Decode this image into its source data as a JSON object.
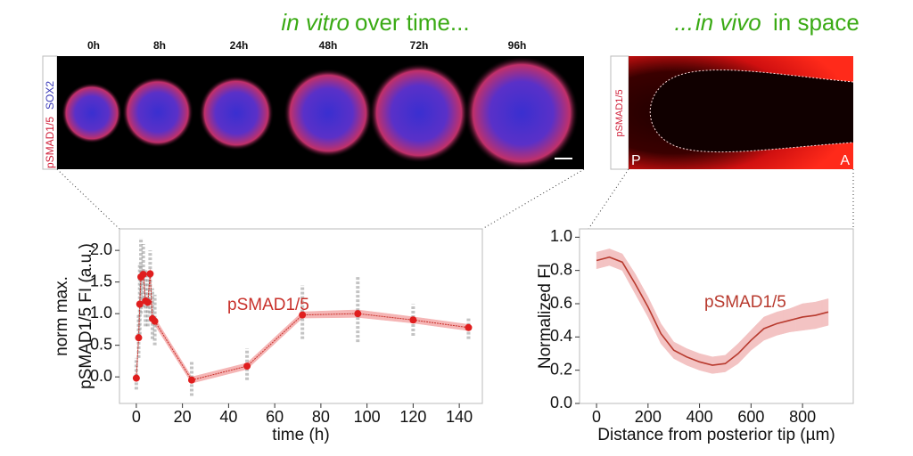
{
  "headings": {
    "left": [
      "in vitro",
      "over time..."
    ],
    "right": [
      "...",
      "in vivo",
      "in space"
    ]
  },
  "images": {
    "left": {
      "time_labels": [
        "0h",
        "8h",
        "24h",
        "48h",
        "72h",
        "96h"
      ],
      "stain_labels": [
        "pSMAD1/5",
        "SOX2"
      ]
    },
    "right": {
      "stain_label": "pSMAD1/5",
      "posterior": "P",
      "anterior": "A"
    }
  },
  "chart_data": [
    {
      "type": "line",
      "markers": true,
      "color": "#c8302a",
      "marker_color": "#e01e1e",
      "band_color": "#f5b5b5",
      "range_color": "#888888",
      "xlabel": "time (h)",
      "ylabel": [
        "norm max.",
        "pSMAD1/5 FI (a.u.)"
      ],
      "annotation": "pSMAD1/5",
      "x": [
        0,
        1,
        1.5,
        2,
        3,
        4,
        5,
        6,
        7,
        8,
        24,
        48,
        72,
        96,
        120,
        144
      ],
      "values": [
        -0.02,
        0.62,
        1.15,
        1.58,
        1.62,
        1.2,
        1.18,
        1.63,
        0.92,
        0.88,
        -0.05,
        0.17,
        0.98,
        1.0,
        0.9,
        0.78
      ],
      "errors": [
        0.05,
        0.06,
        0.07,
        0.08,
        0.08,
        0.07,
        0.07,
        0.08,
        0.06,
        0.06,
        0.05,
        0.05,
        0.05,
        0.06,
        0.05,
        0.05
      ],
      "range": [
        [
          -0.2,
          0.3
        ],
        [
          0.3,
          1.0
        ],
        [
          0.6,
          1.8
        ],
        [
          1.0,
          2.2
        ],
        [
          1.1,
          2.1
        ],
        [
          0.8,
          1.7
        ],
        [
          0.8,
          1.6
        ],
        [
          1.0,
          2.0
        ],
        [
          0.6,
          1.4
        ],
        [
          0.5,
          1.3
        ],
        [
          -0.3,
          0.25
        ],
        [
          -0.05,
          0.45
        ],
        [
          0.6,
          1.45
        ],
        [
          0.55,
          1.6
        ],
        [
          0.65,
          1.15
        ],
        [
          0.6,
          0.95
        ]
      ],
      "xlim": [
        -7.3,
        150
      ],
      "ylim": [
        -0.42,
        2.34
      ],
      "xticks": [
        0,
        20,
        40,
        60,
        80,
        100,
        120,
        140
      ],
      "yticks": [
        {
          "value": 0,
          "label": "0.0"
        },
        0.5,
        {
          "value": 1,
          "label": "1.0"
        },
        1.5,
        {
          "value": 2,
          "label": "2.0"
        }
      ]
    },
    {
      "type": "line",
      "markers": false,
      "color": "#b83a2e",
      "band_color": "#f3c3c3",
      "xlabel": "Distance from posterior tip (µm)",
      "ylabel": [
        "Normalized FI"
      ],
      "annotation": "pSMAD1/5",
      "x": [
        0,
        50,
        100,
        150,
        200,
        250,
        300,
        350,
        400,
        450,
        500,
        550,
        600,
        650,
        700,
        750,
        800,
        850,
        900
      ],
      "values": [
        0.86,
        0.88,
        0.85,
        0.72,
        0.58,
        0.42,
        0.32,
        0.28,
        0.25,
        0.23,
        0.24,
        0.3,
        0.38,
        0.45,
        0.48,
        0.5,
        0.52,
        0.53,
        0.55
      ],
      "errors": [
        0.05,
        0.05,
        0.05,
        0.06,
        0.06,
        0.06,
        0.05,
        0.05,
        0.05,
        0.05,
        0.05,
        0.06,
        0.06,
        0.07,
        0.07,
        0.07,
        0.08,
        0.08,
        0.08
      ],
      "xlim": [
        -66,
        997
      ],
      "ylim": [
        0,
        1.05
      ],
      "xticks": [
        0,
        200,
        400,
        600,
        800
      ],
      "yticks": [
        {
          "value": 0,
          "label": "0.0"
        },
        0.2,
        0.4,
        0.6,
        0.8,
        {
          "value": 1,
          "label": "1.0"
        }
      ]
    }
  ]
}
